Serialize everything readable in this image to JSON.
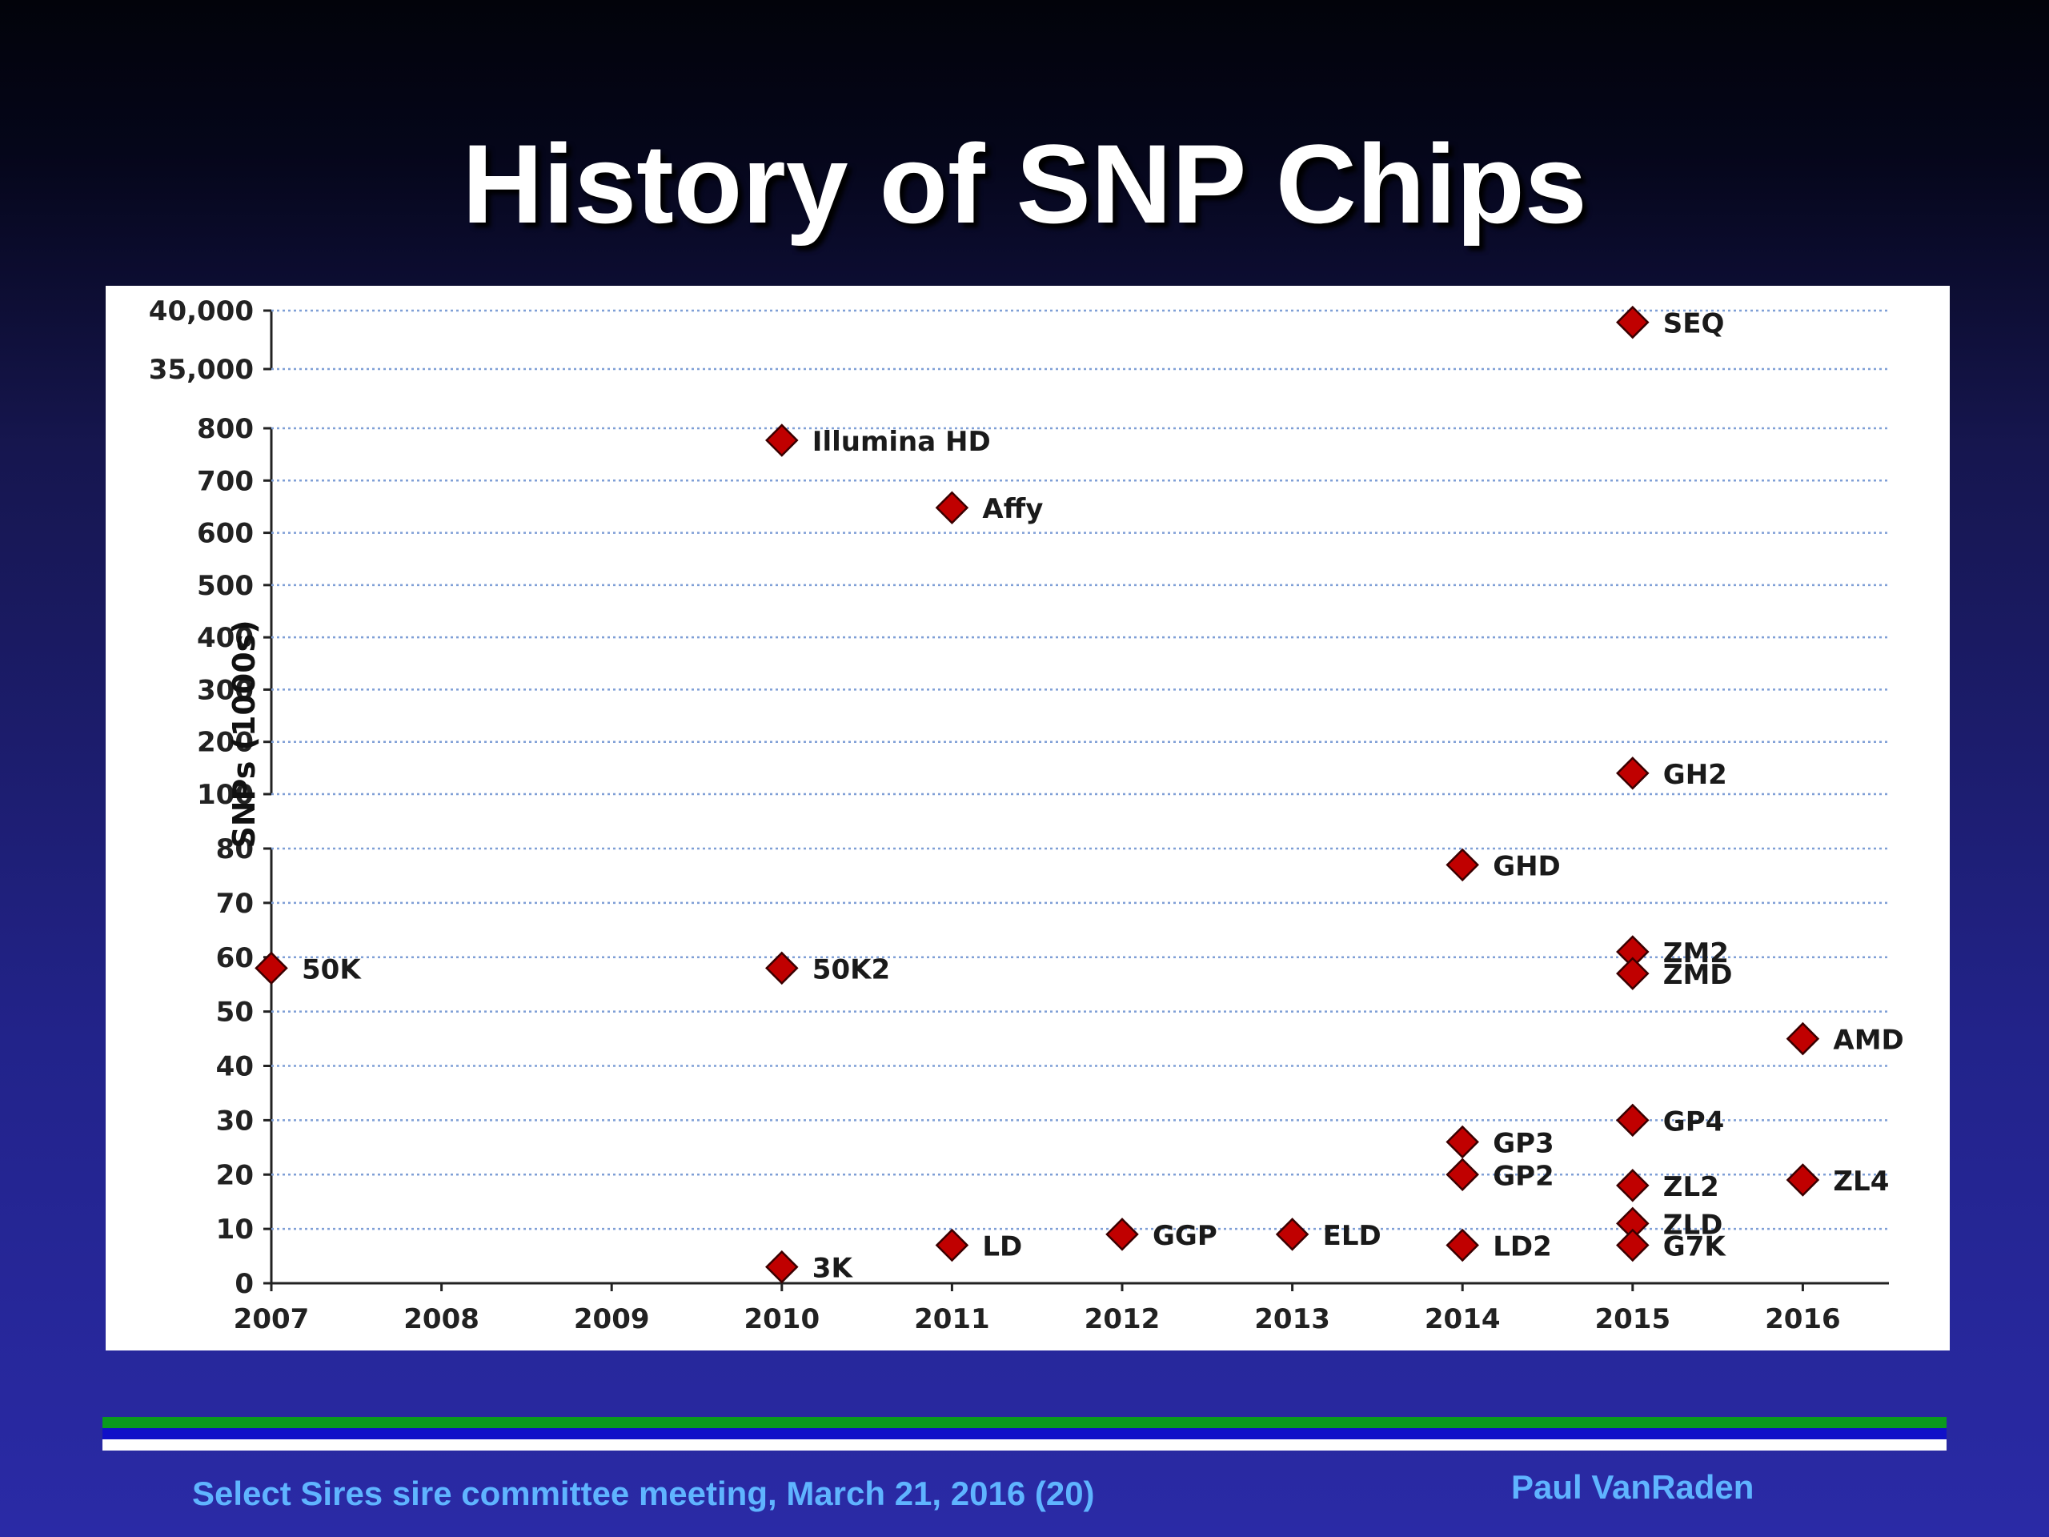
{
  "slide": {
    "title": "History of SNP Chips",
    "footer_left": "Select Sires sire committee meeting, March 21, 2016 (20)",
    "footer_right": "Paul VanRaden"
  },
  "colors": {
    "marker_fill": "#c00000",
    "marker_stroke": "#3a0000",
    "grid": "#7f9fd6",
    "rule_green": "#0a9a1e",
    "rule_blue": "#1010c8",
    "footer_text": "#5fb4ff"
  },
  "chart_data": {
    "type": "scatter",
    "title": "",
    "xlabel": "",
    "ylabel": "SNPs (1000s)",
    "grid": true,
    "y_axis_breaks": true,
    "x_ticks": [
      "2007",
      "2008",
      "2009",
      "2010",
      "2011",
      "2012",
      "2013",
      "2014",
      "2015",
      "2016"
    ],
    "xlim": [
      2007,
      2016.5
    ],
    "y_segments": [
      {
        "range": [
          0,
          80
        ],
        "ticks": [
          0,
          10,
          20,
          30,
          40,
          50,
          60,
          70,
          80
        ],
        "tick_labels": [
          "0",
          "10",
          "20",
          "30",
          "40",
          "50",
          "60",
          "70",
          "80"
        ]
      },
      {
        "range": [
          100,
          800
        ],
        "ticks": [
          100,
          200,
          300,
          400,
          500,
          600,
          700,
          800
        ],
        "tick_labels": [
          "100",
          "200",
          "300",
          "400",
          "500",
          "600",
          "700",
          "800"
        ]
      },
      {
        "range": [
          35000,
          40000
        ],
        "ticks": [
          35000,
          40000
        ],
        "tick_labels": [
          "35,000",
          "40,000"
        ]
      }
    ],
    "points": [
      {
        "label": "50K",
        "x": 2007,
        "y": 58
      },
      {
        "label": "Illumina HD",
        "x": 2010,
        "y": 777
      },
      {
        "label": "50K2",
        "x": 2010,
        "y": 58
      },
      {
        "label": "3K",
        "x": 2010,
        "y": 3
      },
      {
        "label": "Affy",
        "x": 2011,
        "y": 648
      },
      {
        "label": "LD",
        "x": 2011,
        "y": 7
      },
      {
        "label": "GGP",
        "x": 2012,
        "y": 9
      },
      {
        "label": "ELD",
        "x": 2013,
        "y": 9
      },
      {
        "label": "GHD",
        "x": 2014,
        "y": 77
      },
      {
        "label": "GP3",
        "x": 2014,
        "y": 26
      },
      {
        "label": "GP2",
        "x": 2014,
        "y": 20
      },
      {
        "label": "LD2",
        "x": 2014,
        "y": 7
      },
      {
        "label": "SEQ",
        "x": 2015,
        "y": 39000
      },
      {
        "label": "GH2",
        "x": 2015,
        "y": 140
      },
      {
        "label": "ZM2",
        "x": 2015,
        "y": 61
      },
      {
        "label": "ZMD",
        "x": 2015,
        "y": 57
      },
      {
        "label": "GP4",
        "x": 2015,
        "y": 30
      },
      {
        "label": "ZL2",
        "x": 2015,
        "y": 18
      },
      {
        "label": "ZLD",
        "x": 2015,
        "y": 11
      },
      {
        "label": "G7K",
        "x": 2015,
        "y": 7
      },
      {
        "label": "AMD",
        "x": 2016,
        "y": 45
      },
      {
        "label": "ZL4",
        "x": 2016,
        "y": 19
      }
    ]
  }
}
